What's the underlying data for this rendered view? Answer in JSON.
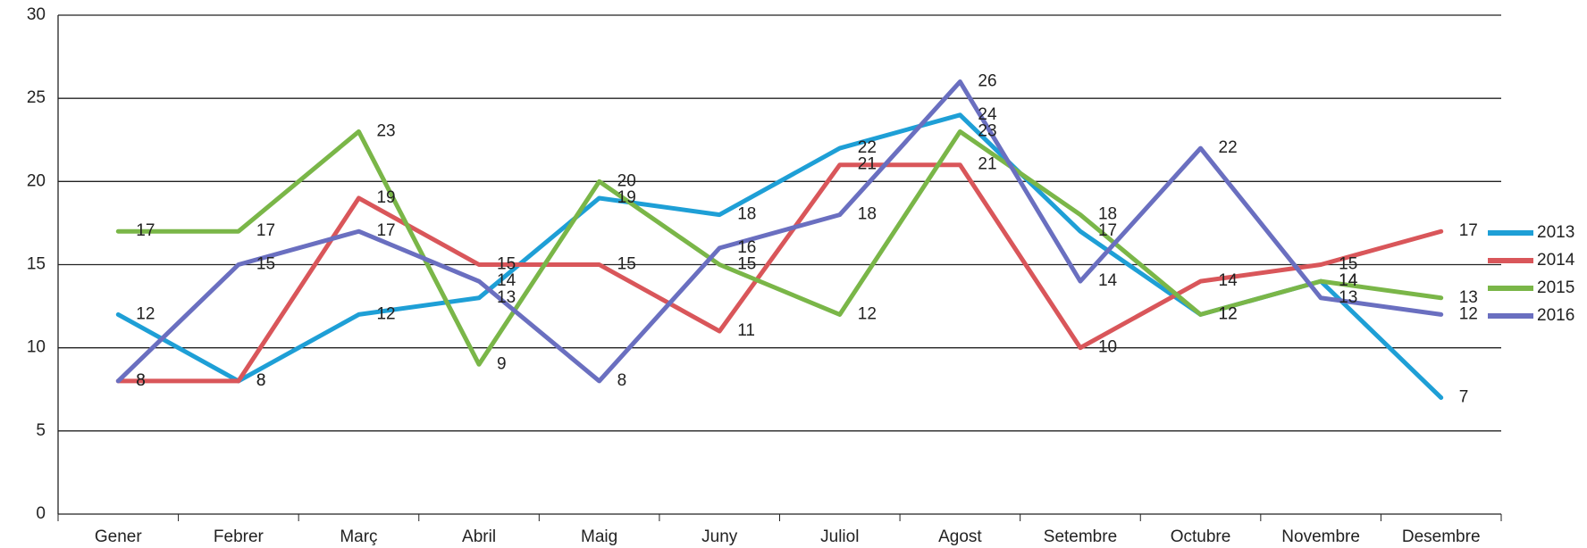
{
  "chart_data": {
    "type": "line",
    "categories": [
      "Gener",
      "Febrer",
      "Març",
      "Abril",
      "Maig",
      "Juny",
      "Juliol",
      "Agost",
      "Setembre",
      "Octubre",
      "Novembre",
      "Desembre"
    ],
    "series": [
      {
        "name": "2013",
        "color": "#1e9fd6",
        "values": [
          12,
          8,
          12,
          13,
          19,
          18,
          22,
          24,
          17,
          12,
          14,
          7
        ]
      },
      {
        "name": "2014",
        "color": "#d9565a",
        "values": [
          8,
          8,
          19,
          15,
          15,
          11,
          21,
          21,
          10,
          14,
          15,
          17
        ]
      },
      {
        "name": "2015",
        "color": "#7ab648",
        "values": [
          17,
          17,
          23,
          9,
          20,
          15,
          12,
          23,
          18,
          12,
          14,
          13
        ]
      },
      {
        "name": "2016",
        "color": "#6a6fc0",
        "values": [
          8,
          15,
          17,
          14,
          8,
          16,
          18,
          26,
          14,
          22,
          13,
          12
        ]
      }
    ],
    "ylim": [
      0,
      30
    ],
    "yticks": [
      0,
      5,
      10,
      15,
      20,
      25,
      30
    ],
    "grid": true,
    "legend": "right"
  }
}
